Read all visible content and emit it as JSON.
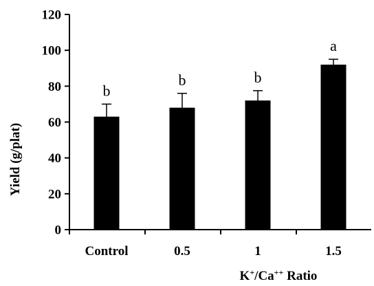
{
  "chart_data": {
    "type": "bar",
    "title": "",
    "xlabel": "K⁺/Ca⁺⁺ Ratio",
    "xlabel_parts": {
      "base1": "K",
      "sup1": "+",
      "mid": "/Ca",
      "sup2": "++",
      "tail": " Ratio"
    },
    "ylabel": "Yield (g/plat)",
    "ylim": [
      0,
      120
    ],
    "yticks": [
      0,
      20,
      40,
      60,
      80,
      100,
      120
    ],
    "categories": [
      "Control",
      "0.5",
      "1",
      "1.5"
    ],
    "values": [
      63,
      68,
      72,
      92
    ],
    "errors": [
      7,
      8,
      5.5,
      3
    ],
    "significance": [
      "b",
      "b",
      "b",
      "a"
    ],
    "bar_color": "#000000",
    "grid": false,
    "legend": "none"
  }
}
